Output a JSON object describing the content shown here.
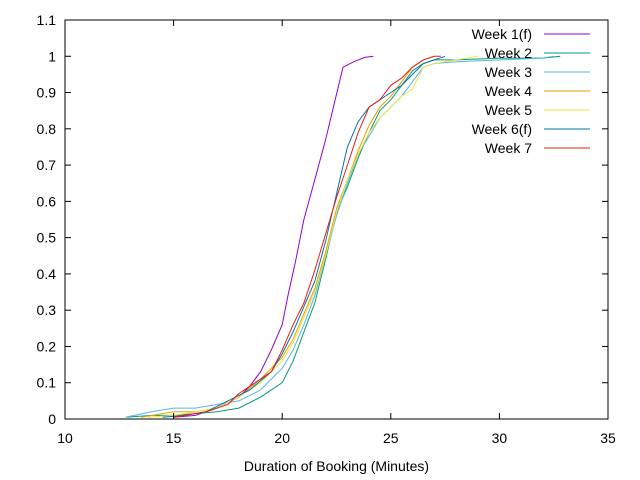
{
  "chart_data": {
    "type": "line",
    "title": "",
    "xlabel": "Duration of Booking (Minutes)",
    "ylabel": "",
    "xlim": [
      10,
      35
    ],
    "ylim": [
      0,
      1.1
    ],
    "x_ticks": [
      "10",
      "15",
      "20",
      "25",
      "30",
      "35"
    ],
    "y_ticks": [
      "0",
      "0.1",
      "0.2",
      "0.3",
      "0.4",
      "0.5",
      "0.6",
      "0.7",
      "0.8",
      "0.9",
      "1",
      "1.1"
    ],
    "grid": false,
    "legend_position": "top-right",
    "series": [
      {
        "name": "Week 1(f)",
        "color": "#9400d3",
        "points": [
          [
            15.0,
            0.005
          ],
          [
            16.0,
            0.01
          ],
          [
            17.0,
            0.03
          ],
          [
            18.0,
            0.06
          ],
          [
            18.5,
            0.09
          ],
          [
            19.0,
            0.13
          ],
          [
            19.5,
            0.19
          ],
          [
            20.0,
            0.26
          ],
          [
            20.3,
            0.35
          ],
          [
            20.6,
            0.43
          ],
          [
            21.0,
            0.55
          ],
          [
            21.5,
            0.66
          ],
          [
            22.0,
            0.77
          ],
          [
            22.4,
            0.87
          ],
          [
            22.8,
            0.97
          ],
          [
            23.3,
            0.985
          ],
          [
            23.8,
            0.997
          ],
          [
            24.2,
            1.0
          ]
        ]
      },
      {
        "name": "Week 2",
        "color": "#009e73",
        "points": [
          [
            12.8,
            0.005
          ],
          [
            14.0,
            0.01
          ],
          [
            15.0,
            0.01
          ],
          [
            16.0,
            0.015
          ],
          [
            17.0,
            0.02
          ],
          [
            18.0,
            0.03
          ],
          [
            19.0,
            0.06
          ],
          [
            20.0,
            0.1
          ],
          [
            20.5,
            0.16
          ],
          [
            21.0,
            0.24
          ],
          [
            21.5,
            0.32
          ],
          [
            22.0,
            0.44
          ],
          [
            22.5,
            0.57
          ],
          [
            23.0,
            0.64
          ],
          [
            23.5,
            0.72
          ],
          [
            24.0,
            0.79
          ],
          [
            24.5,
            0.85
          ],
          [
            25.0,
            0.88
          ],
          [
            25.5,
            0.92
          ],
          [
            26.0,
            0.96
          ],
          [
            26.5,
            0.98
          ],
          [
            27.0,
            0.99
          ],
          [
            28.0,
            0.99
          ],
          [
            30.0,
            0.995
          ],
          [
            32.0,
            0.995
          ],
          [
            32.8,
            1.0
          ]
        ]
      },
      {
        "name": "Week 3",
        "color": "#56b4e9",
        "points": [
          [
            12.8,
            0.005
          ],
          [
            14.0,
            0.02
          ],
          [
            15.0,
            0.03
          ],
          [
            16.0,
            0.03
          ],
          [
            17.0,
            0.04
          ],
          [
            18.0,
            0.05
          ],
          [
            19.0,
            0.08
          ],
          [
            20.0,
            0.14
          ],
          [
            20.5,
            0.19
          ],
          [
            21.0,
            0.26
          ],
          [
            21.5,
            0.34
          ],
          [
            22.0,
            0.45
          ],
          [
            22.5,
            0.56
          ],
          [
            23.0,
            0.65
          ],
          [
            23.5,
            0.73
          ],
          [
            24.0,
            0.78
          ],
          [
            24.5,
            0.83
          ],
          [
            25.0,
            0.86
          ],
          [
            25.5,
            0.89
          ],
          [
            26.0,
            0.93
          ],
          [
            26.5,
            0.97
          ],
          [
            27.0,
            0.98
          ],
          [
            28.0,
            0.985
          ],
          [
            30.0,
            0.99
          ],
          [
            32.0,
            0.995
          ],
          [
            32.5,
            1.0
          ]
        ]
      },
      {
        "name": "Week 4",
        "color": "#e69f00",
        "points": [
          [
            13.5,
            0.005
          ],
          [
            15.0,
            0.02
          ],
          [
            16.0,
            0.02
          ],
          [
            17.0,
            0.03
          ],
          [
            18.0,
            0.06
          ],
          [
            19.0,
            0.11
          ],
          [
            20.0,
            0.17
          ],
          [
            20.5,
            0.22
          ],
          [
            21.0,
            0.29
          ],
          [
            21.5,
            0.36
          ],
          [
            22.0,
            0.46
          ],
          [
            22.5,
            0.58
          ],
          [
            23.0,
            0.66
          ],
          [
            23.5,
            0.74
          ],
          [
            24.0,
            0.81
          ],
          [
            24.5,
            0.86
          ],
          [
            25.0,
            0.89
          ],
          [
            25.5,
            0.93
          ],
          [
            26.0,
            0.97
          ],
          [
            26.5,
            0.99
          ],
          [
            27.0,
            1.0
          ]
        ]
      },
      {
        "name": "Week 5",
        "color": "#f0e442",
        "points": [
          [
            13.8,
            0.005
          ],
          [
            15.0,
            0.01
          ],
          [
            16.0,
            0.02
          ],
          [
            17.0,
            0.03
          ],
          [
            18.0,
            0.06
          ],
          [
            19.0,
            0.1
          ],
          [
            20.0,
            0.16
          ],
          [
            20.5,
            0.21
          ],
          [
            21.0,
            0.28
          ],
          [
            21.5,
            0.35
          ],
          [
            22.0,
            0.45
          ],
          [
            22.5,
            0.57
          ],
          [
            23.0,
            0.66
          ],
          [
            23.5,
            0.73
          ],
          [
            24.0,
            0.79
          ],
          [
            24.5,
            0.83
          ],
          [
            25.0,
            0.86
          ],
          [
            25.5,
            0.89
          ],
          [
            26.0,
            0.91
          ],
          [
            26.5,
            0.97
          ],
          [
            27.0,
            0.98
          ],
          [
            28.0,
            0.99
          ],
          [
            29.0,
            1.0
          ]
        ]
      },
      {
        "name": "Week 6(f)",
        "color": "#0072b2",
        "points": [
          [
            14.5,
            0.005
          ],
          [
            15.5,
            0.01
          ],
          [
            16.5,
            0.02
          ],
          [
            17.5,
            0.05
          ],
          [
            18.5,
            0.08
          ],
          [
            19.5,
            0.13
          ],
          [
            20.0,
            0.18
          ],
          [
            20.5,
            0.24
          ],
          [
            21.0,
            0.31
          ],
          [
            21.5,
            0.38
          ],
          [
            22.0,
            0.49
          ],
          [
            22.5,
            0.62
          ],
          [
            23.0,
            0.75
          ],
          [
            23.5,
            0.82
          ],
          [
            24.0,
            0.86
          ],
          [
            24.5,
            0.88
          ],
          [
            25.0,
            0.9
          ],
          [
            25.5,
            0.92
          ],
          [
            26.0,
            0.95
          ],
          [
            26.5,
            0.98
          ],
          [
            27.0,
            0.99
          ],
          [
            27.5,
            1.0
          ]
        ]
      },
      {
        "name": "Week 7",
        "color": "#e51e10",
        "points": [
          [
            15.0,
            0.005
          ],
          [
            15.5,
            0.01
          ],
          [
            16.5,
            0.02
          ],
          [
            17.5,
            0.04
          ],
          [
            18.0,
            0.07
          ],
          [
            18.5,
            0.09
          ],
          [
            19.5,
            0.13
          ],
          [
            20.0,
            0.19
          ],
          [
            20.5,
            0.26
          ],
          [
            21.0,
            0.32
          ],
          [
            21.5,
            0.41
          ],
          [
            22.0,
            0.51
          ],
          [
            22.5,
            0.61
          ],
          [
            23.0,
            0.7
          ],
          [
            23.5,
            0.79
          ],
          [
            24.0,
            0.86
          ],
          [
            24.5,
            0.88
          ],
          [
            25.0,
            0.92
          ],
          [
            25.5,
            0.94
          ],
          [
            26.0,
            0.97
          ],
          [
            26.5,
            0.99
          ],
          [
            27.0,
            1.0
          ],
          [
            27.3,
            1.0
          ]
        ]
      }
    ]
  }
}
